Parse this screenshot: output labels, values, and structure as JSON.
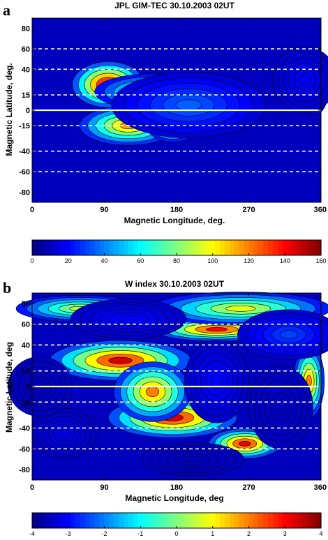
{
  "figure": {
    "panels": [
      "a",
      "b"
    ]
  },
  "chart_data": [
    {
      "type": "heatmap",
      "panel": "a",
      "title": "JPL GIM-TEC 30.10.2003 02UT",
      "xlabel": "Magnetic Longitude, deg.",
      "ylabel": "Magnetic Latitude, deg.",
      "xlim": [
        0,
        360
      ],
      "ylim": [
        -90,
        90
      ],
      "x_ticks": [
        0,
        90,
        180,
        270,
        360
      ],
      "y_ticks": [
        80,
        60,
        40,
        15,
        0,
        -15,
        -40,
        -60,
        -80
      ],
      "reference_lines": [
        60,
        40,
        15,
        -15,
        -40,
        -60
      ],
      "equator_line": 0,
      "colorbar": {
        "min": 0,
        "max": 160,
        "ticks": [
          0,
          20,
          40,
          60,
          80,
          100,
          120,
          140,
          160
        ]
      },
      "features": [
        {
          "lon": 95,
          "lat": 25,
          "value": 155,
          "sx": 28,
          "sy": 14
        },
        {
          "lon": 150,
          "lat": 18,
          "value": 85,
          "sx": 45,
          "sy": 11
        },
        {
          "lon": 185,
          "lat": 20,
          "value": 70,
          "sx": 28,
          "sy": 12
        },
        {
          "lon": 120,
          "lat": -15,
          "value": 115,
          "sx": 38,
          "sy": 12
        },
        {
          "lon": 175,
          "lat": -15,
          "value": 95,
          "sx": 20,
          "sy": 10
        },
        {
          "lon": 195,
          "lat": 5,
          "value": 35,
          "sx": 60,
          "sy": 20
        },
        {
          "lon": 352,
          "lat": 15,
          "value": 35,
          "sx": 10,
          "sy": 12
        },
        {
          "lon": 340,
          "lat": 30,
          "value": 18,
          "sx": 25,
          "sy": 20
        }
      ]
    },
    {
      "type": "heatmap",
      "panel": "b",
      "title": "W index 30.10.2003 02UT",
      "xlabel": "Magnetic Longitude, deg",
      "ylabel": "Magnetic Latitude, deg",
      "xlim": [
        0,
        360
      ],
      "ylim": [
        -90,
        90
      ],
      "x_ticks": [
        0,
        90,
        180,
        270,
        360
      ],
      "y_ticks": [
        80,
        60,
        40,
        15,
        0,
        -15,
        -40,
        -60,
        -80
      ],
      "reference_lines": [
        60,
        40,
        15,
        -15,
        -40,
        -60
      ],
      "equator_line": 0,
      "colorbar": {
        "min": -4,
        "max": 4,
        "ticks": [
          -4,
          -3,
          -2,
          -1,
          0,
          1,
          2,
          3,
          4
        ]
      },
      "features": [
        {
          "lon": 110,
          "lat": 25,
          "value": 3.3,
          "sx": 55,
          "sy": 12
        },
        {
          "lon": 175,
          "lat": -30,
          "value": 3.3,
          "sx": 50,
          "sy": 12
        },
        {
          "lon": 265,
          "lat": -55,
          "value": 3.2,
          "sx": 28,
          "sy": 9
        },
        {
          "lon": 230,
          "lat": 55,
          "value": 3.0,
          "sx": 50,
          "sy": 7
        },
        {
          "lon": 150,
          "lat": -5,
          "value": 2.0,
          "sx": 30,
          "sy": 18
        },
        {
          "lon": 345,
          "lat": 5,
          "value": 2.0,
          "sx": 12,
          "sy": 22
        },
        {
          "lon": 260,
          "lat": 75,
          "value": 0.8,
          "sx": 70,
          "sy": 10
        },
        {
          "lon": 60,
          "lat": 75,
          "value": 0.5,
          "sx": 50,
          "sy": 8
        },
        {
          "lon": 40,
          "lat": -45,
          "value": -3.2,
          "sx": 25,
          "sy": 15
        },
        {
          "lon": 310,
          "lat": -20,
          "value": -3.5,
          "sx": 25,
          "sy": 25
        },
        {
          "lon": 10,
          "lat": 0,
          "value": -3.5,
          "sx": 25,
          "sy": 18
        },
        {
          "lon": 120,
          "lat": 65,
          "value": -3.0,
          "sx": 45,
          "sy": 12
        },
        {
          "lon": 320,
          "lat": 50,
          "value": -2.5,
          "sx": 40,
          "sy": 15
        },
        {
          "lon": 230,
          "lat": 5,
          "value": -3.0,
          "sx": 25,
          "sy": 25
        },
        {
          "lon": 200,
          "lat": -70,
          "value": -3.5,
          "sx": 40,
          "sy": 10
        }
      ]
    }
  ]
}
